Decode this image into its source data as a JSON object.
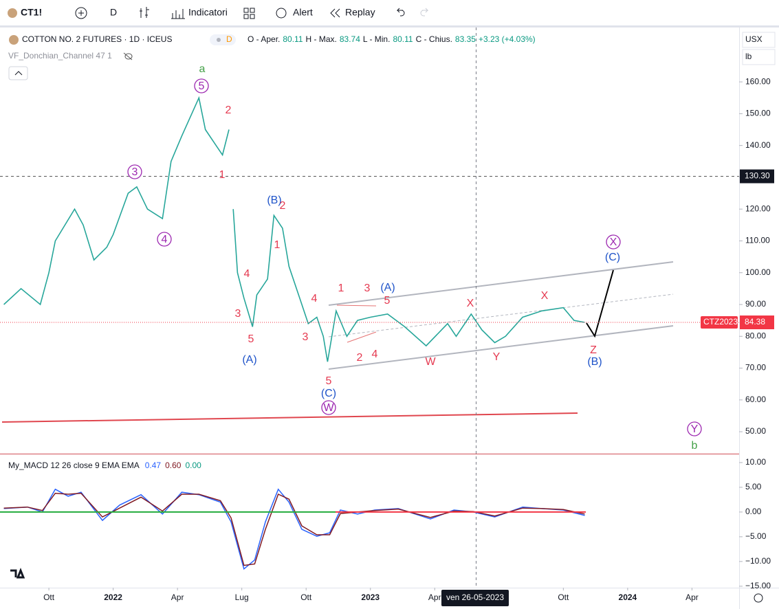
{
  "toolbar": {
    "symbol": "CT1!",
    "interval": "D",
    "indicators": "Indicatori",
    "alert": "Alert",
    "replay": "Replay"
  },
  "legend": {
    "title": "COTTON NO. 2 FUTURES · 1D · ICEUS",
    "badge": "D",
    "open_label": "O - Aper.",
    "open": "80.11",
    "high_label": "H - Max.",
    "high": "83.74",
    "low_label": "L - Min.",
    "low": "80.11",
    "close_label": "C - Chius.",
    "close": "83.35",
    "change": "+3.23 (+4.03%)",
    "indicator": "VF_Donchian_Channel 47 1"
  },
  "price_axis": {
    "currency": "USX",
    "unit": "lb"
  },
  "crosshair_label": "ven 26-05-2023",
  "annotations": [
    "a",
    "5",
    "2",
    "1",
    "3",
    "4",
    "(B)",
    "2",
    "1",
    "4",
    "3",
    "5",
    "(A)",
    "4",
    "3",
    "5",
    "(C)",
    "W",
    "1",
    "3",
    "(A)",
    "5",
    "2",
    "4",
    "W",
    "X",
    "Y",
    "X",
    "Z",
    "(B)",
    "X",
    "(C)",
    "Y",
    "b"
  ],
  "chart_data": [
    {
      "type": "line",
      "x": [
        -2.1,
        -1.3,
        -0.4,
        0.0,
        0.3,
        1.2,
        1.6,
        2.1,
        2.7,
        3.0,
        3.7,
        4.1,
        4.6,
        5.3,
        5.7,
        6.2,
        7.0,
        7.3,
        7.8,
        8.1,
        8.4,
        8.5,
        8.6,
        8.8,
        9.1,
        9.5,
        9.7,
        10.2,
        10.5,
        10.9,
        11.2,
        11.7,
        12.1,
        12.5,
        12.8,
        13.0,
        13.4,
        13.9,
        14.4,
        15.0,
        15.8,
        16.6,
        17.6,
        18.6,
        19.0,
        19.7,
        20.2,
        20.8,
        21.3,
        22.1,
        23.0,
        24.0,
        24.5,
        25.0
      ],
      "series": [
        {
          "name": "CTZ2023",
          "color": "#26a69a",
          "values": [
            90,
            95,
            90,
            100,
            110,
            120,
            115,
            104,
            108,
            112,
            125,
            127,
            120,
            117,
            135,
            143,
            155,
            145,
            140,
            137,
            145,
            null,
            120,
            100,
            92,
            83,
            93,
            98,
            118,
            114,
            102,
            92,
            84,
            86,
            80,
            72,
            88,
            80,
            85,
            86,
            87,
            83,
            77,
            84,
            80,
            87,
            82,
            78,
            80,
            86,
            88,
            89,
            85,
            84.38
          ]
        }
      ],
      "xlim": [
        -2.28,
        32.2
      ],
      "xticks": [
        {
          "value": 0,
          "label": "Ott"
        },
        {
          "value": 3,
          "label": "2022"
        },
        {
          "value": 6,
          "label": "Apr"
        },
        {
          "value": 9,
          "label": "Lug"
        },
        {
          "value": 12,
          "label": "Ott"
        },
        {
          "value": 15,
          "label": "2023"
        },
        {
          "value": 18,
          "label": "Apr"
        },
        {
          "value": 24,
          "label": "Ott"
        },
        {
          "value": 27,
          "label": "2024"
        },
        {
          "value": 30,
          "label": "Apr"
        }
      ],
      "ylim": [
        43.1,
        177.1
      ],
      "yticks": [
        {
          "value": 160,
          "label": "160.00"
        },
        {
          "value": 150,
          "label": "150.00"
        },
        {
          "value": 140,
          "label": "140.00"
        },
        {
          "value": 130,
          "label": "130.00"
        },
        {
          "value": 120,
          "label": "120.00"
        },
        {
          "value": 110,
          "label": "110.00"
        },
        {
          "value": 100,
          "label": "100.00"
        },
        {
          "value": 90,
          "label": "90.00"
        },
        {
          "value": 80,
          "label": "80.00"
        },
        {
          "value": 70,
          "label": "70.00"
        },
        {
          "value": 60,
          "label": "60.00"
        },
        {
          "value": 50,
          "label": "50.00"
        }
      ],
      "reference_line": {
        "value": 130.3,
        "label": "130.30"
      },
      "last_price": {
        "name": "CTZ2023",
        "value": 84.38,
        "label": "84.38"
      }
    },
    {
      "type": "line",
      "title": "My_MACD 12 26 close 9 EMA EMA",
      "legend_values": [
        "0.47",
        "0.60",
        "0.00"
      ],
      "x": [
        -2.1,
        -1.0,
        -0.3,
        0.3,
        0.9,
        1.5,
        2.5,
        3.3,
        4.3,
        5.3,
        6.2,
        7.0,
        8.0,
        8.5,
        9.1,
        9.6,
        10.1,
        10.7,
        11.2,
        11.8,
        12.5,
        13.1,
        13.6,
        14.4,
        15.2,
        16.3,
        17.8,
        18.9,
        19.8,
        20.8,
        22.1,
        23.0,
        24.0,
        25.0
      ],
      "series": [
        {
          "name": "MACD",
          "color": "#2962ff",
          "values": [
            0.7,
            1,
            0,
            4.6,
            3.2,
            4,
            -1.7,
            1.4,
            3.5,
            -0.4,
            4,
            3.5,
            2,
            -2,
            -11.5,
            -9.7,
            -2,
            4.6,
            2,
            -3.5,
            -4.9,
            -4.2,
            0.4,
            -0.4,
            0.4,
            0.7,
            -1.4,
            0.4,
            0,
            -1,
            1,
            0.7,
            0.4,
            -0.7
          ]
        },
        {
          "name": "Signal",
          "color": "#801922",
          "values": [
            0.8,
            1,
            0.3,
            3.8,
            3.6,
            3.8,
            -1.0,
            0.8,
            3.0,
            0.2,
            3.6,
            3.6,
            2.3,
            -1.2,
            -10.8,
            -10.5,
            -3.5,
            3.6,
            2.6,
            -2.8,
            -4.6,
            -4.6,
            -0.3,
            0,
            0.3,
            0.6,
            -1.1,
            0.2,
            0.1,
            -0.8,
            0.8,
            0.7,
            0.5,
            -0.4
          ]
        }
      ],
      "xlim": [
        -2.28,
        32.2
      ],
      "ylim": [
        -15.3,
        11.8
      ],
      "yticks": [
        {
          "value": 10,
          "label": "10.00"
        },
        {
          "value": 5,
          "label": "5.00"
        },
        {
          "value": 0,
          "label": "0.00"
        },
        {
          "value": -5,
          "label": "−5.00"
        },
        {
          "value": -10,
          "label": "−10.00"
        },
        {
          "value": -15,
          "label": "−15.00"
        }
      ]
    }
  ]
}
